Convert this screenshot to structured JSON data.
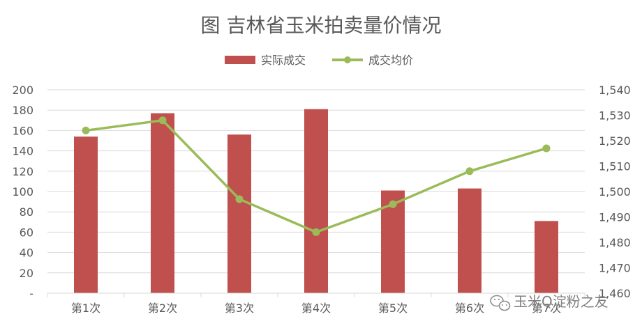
{
  "chart_data": {
    "type": "bar",
    "title": "图 吉林省玉米拍卖量价情况",
    "categories": [
      "第1次",
      "第2次",
      "第3次",
      "第4次",
      "第5次",
      "第6次",
      "第7次"
    ],
    "series": [
      {
        "name": "实际成交",
        "type": "bar",
        "axis": "left",
        "color": "#C0504D",
        "values": [
          154,
          177,
          156,
          181,
          101,
          103,
          71
        ]
      },
      {
        "name": "成交均价",
        "type": "line",
        "axis": "right",
        "color": "#9BBB59",
        "values": [
          1524,
          1528,
          1497,
          1484,
          1495,
          1508,
          1517
        ]
      }
    ],
    "y_left": {
      "ylim": [
        0,
        200
      ],
      "ticks": [
        0,
        20,
        40,
        60,
        80,
        100,
        120,
        140,
        160,
        180,
        200
      ],
      "tick_labels": [
        "-",
        "20",
        "40",
        "60",
        "80",
        "100",
        "120",
        "140",
        "160",
        "180",
        "200"
      ]
    },
    "y_right": {
      "ylim": [
        1460,
        1540
      ],
      "ticks": [
        1460,
        1470,
        1480,
        1490,
        1500,
        1510,
        1520,
        1530,
        1540
      ],
      "tick_labels": [
        "1,460",
        "1,470",
        "1,480",
        "1,490",
        "1,500",
        "1,510",
        "1,520",
        "1,530",
        "1,540"
      ]
    },
    "grid": true,
    "legend_position": "top-center"
  },
  "watermark": {
    "text": "玉米Q淀粉之友",
    "icon": "wechat-icon"
  },
  "colors": {
    "grid": "#D9D9D9",
    "text": "#595959"
  }
}
